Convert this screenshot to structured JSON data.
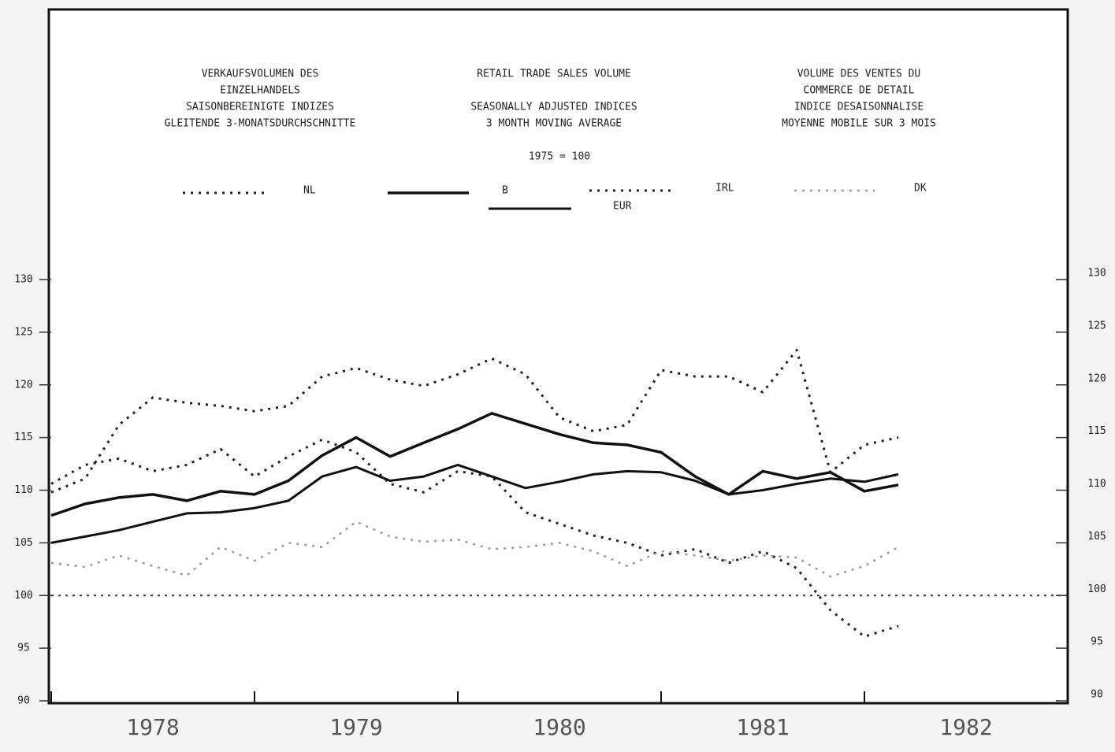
{
  "chart_data": {
    "type": "line",
    "title_blocks": [
      [
        "VERKAUFSVOLUMEN DES",
        "EINZELHANDELS",
        "SAISONBEREINIGTE INDIZES",
        "GLEITENDE 3-MONATSDURCHSCHNITTE"
      ],
      [
        "RETAIL TRADE SALES VOLUME",
        "",
        "SEASONALLY ADJUSTED INDICES",
        "3 MONTH MOVING AVERAGE"
      ],
      [
        "VOLUME DES VENTES DU",
        "COMMERCE DE DETAIL",
        "INDICE DESAISONNALISE",
        "MOYENNE MOBILE SUR 3 MOIS"
      ]
    ],
    "base": "1975 = 100",
    "x": [
      1978,
      1978.167,
      1978.333,
      1978.5,
      1978.667,
      1978.833,
      1979,
      1979.167,
      1979.333,
      1979.5,
      1979.667,
      1979.833,
      1980,
      1980.167,
      1980.333,
      1980.5,
      1980.667,
      1980.833,
      1981,
      1981.167,
      1981.333,
      1981.5,
      1981.667,
      1981.833,
      1982,
      1982.167
    ],
    "series": [
      {
        "name": "NL",
        "color": "#222222",
        "dash": "dotted",
        "width": 3,
        "values": [
          110.6,
          112.4,
          113.0,
          111.8,
          112.4,
          113.9,
          111.3,
          113.2,
          114.8,
          113.6,
          110.6,
          109.8,
          111.8,
          111.3,
          107.9,
          106.8,
          105.7,
          105.0,
          103.8,
          104.4,
          103.1,
          104.2,
          102.6,
          98.6,
          96.1,
          97.1
        ]
      },
      {
        "name": "B",
        "color": "#111111",
        "dash": "solid",
        "width": 3.5,
        "values": [
          107.6,
          108.7,
          109.3,
          109.6,
          109.0,
          109.9,
          109.6,
          110.9,
          113.3,
          115.0,
          113.2,
          114.5,
          115.8,
          117.3,
          116.3,
          115.3,
          114.5,
          114.3,
          113.6,
          111.3,
          109.6,
          111.8,
          111.1,
          111.7,
          109.9,
          110.5
        ]
      },
      {
        "name": "IRL",
        "color": "#222222",
        "dash": "dotted",
        "width": 3,
        "values": [
          109.8,
          111.1,
          116.2,
          118.8,
          118.3,
          118.0,
          117.5,
          118.0,
          120.8,
          121.6,
          120.5,
          119.9,
          121.0,
          122.5,
          121.0,
          116.9,
          115.6,
          116.2,
          121.4,
          120.8,
          120.8,
          119.3,
          123.3,
          111.7,
          114.3,
          115.0
        ]
      },
      {
        "name": "DK",
        "color": "#999999",
        "dash": "dotted",
        "width": 2.5,
        "values": [
          103.1,
          102.7,
          103.8,
          102.8,
          101.9,
          104.6,
          103.3,
          105.0,
          104.6,
          107.0,
          105.6,
          105.1,
          105.3,
          104.4,
          104.6,
          105.0,
          104.2,
          102.8,
          104.2,
          103.8,
          103.3,
          103.8,
          103.6,
          101.8,
          102.8,
          104.6
        ]
      },
      {
        "name": "EUR",
        "color": "#111111",
        "dash": "solid",
        "width": 3,
        "values": [
          105.0,
          105.6,
          106.2,
          107.0,
          107.8,
          107.9,
          108.3,
          109.0,
          111.3,
          112.2,
          110.9,
          111.3,
          112.4,
          111.3,
          110.2,
          110.8,
          111.5,
          111.8,
          111.7,
          110.9,
          109.6,
          110.0,
          110.6,
          111.1,
          110.8,
          111.5
        ]
      }
    ],
    "reference_line": 100,
    "xlim": [
      1978,
      1983
    ],
    "xticks": [
      1978,
      1979,
      1980,
      1981,
      1982
    ],
    "ylim": [
      90,
      130
    ],
    "yticks": [
      90,
      95,
      100,
      105,
      110,
      115,
      120,
      125,
      130
    ]
  }
}
